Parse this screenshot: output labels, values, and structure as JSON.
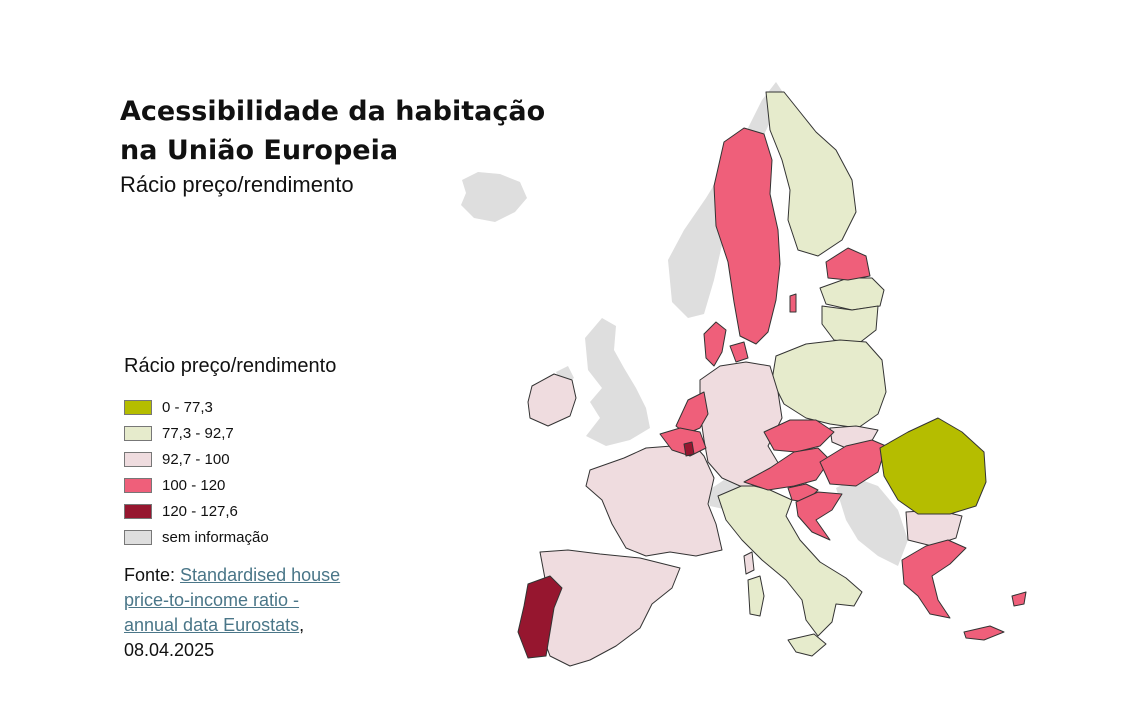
{
  "title": {
    "line1": "Acessibilidade da habitação",
    "line2": "na União Europeia",
    "subtitle": "Rácio preço/rendimento"
  },
  "legend": {
    "title": "Rácio preço/rendimento",
    "items": [
      {
        "label": "0 - 77,3",
        "color": "#b5bd00"
      },
      {
        "label": "77,3 - 92,7",
        "color": "#e6ebcc"
      },
      {
        "label": "92,7 - 100",
        "color": "#efdcdf"
      },
      {
        "label": "100 - 120",
        "color": "#ef5f7a"
      },
      {
        "label": "120 - 127,6",
        "color": "#96162f"
      },
      {
        "label": "sem informação",
        "color": "#dedede"
      }
    ]
  },
  "source": {
    "prefix": "Fonte: ",
    "link_text": "Standardised house price-to-income ratio - annual data Eurostats",
    "suffix": ", 08.04.2025"
  },
  "map": {
    "categories": {
      "0 - 77,3": [
        "Romania"
      ],
      "77,3 - 92,7": [
        "Finland",
        "Latvia",
        "Lithuania",
        "Poland",
        "Italy"
      ],
      "92,7 - 100": [
        "Ireland",
        "France",
        "Germany",
        "Spain",
        "Slovakia",
        "Bulgaria"
      ],
      "100 - 120": [
        "Sweden",
        "Denmark",
        "Estonia",
        "Netherlands",
        "Belgium",
        "Czechia",
        "Austria",
        "Hungary",
        "Slovenia",
        "Croatia",
        "Greece",
        "Cyprus"
      ],
      "120 - 127,6": [
        "Portugal",
        "Luxembourg"
      ],
      "sem informação": [
        "Norway",
        "Iceland",
        "United Kingdom",
        "Switzerland",
        "Balkans"
      ]
    }
  }
}
